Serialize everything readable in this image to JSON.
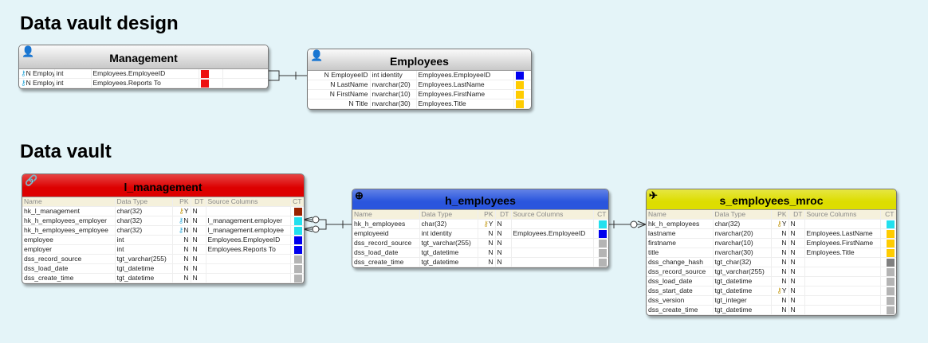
{
  "sections": {
    "design": "Data vault design",
    "vault": "Data vault"
  },
  "colors": {
    "red": "#ee1111",
    "blue": "#0000ee",
    "yellow": "#ffcc00",
    "cyan": "#22e0ee",
    "darkred": "#992200",
    "gray": "#b4b4b4",
    "darkgray": "#808080"
  },
  "columns": [
    "Name",
    "Data Type",
    "PK",
    "DT",
    "Source Columns",
    "CT"
  ],
  "entities": {
    "management": {
      "title": "Management",
      "icon": "user-icon",
      "rows": [
        {
          "key": "link-key",
          "n": "N",
          "name": "Employee",
          "type": "int",
          "src": "Employees.EmployeeID",
          "ct": "red"
        },
        {
          "key": "link-key",
          "n": "N",
          "name": "Employer",
          "type": "int",
          "src": "Employees.Reports To",
          "ct": "red"
        }
      ]
    },
    "employees": {
      "title": "Employees",
      "icon": "user-icon",
      "rows": [
        {
          "n": "N",
          "name": "EmployeeID",
          "type": "int identity",
          "src": "Employees.EmployeeID",
          "ct": "blue"
        },
        {
          "n": "N",
          "name": "LastName",
          "type": "nvarchar(20)",
          "src": "Employees.LastName",
          "ct": "yellow"
        },
        {
          "n": "N",
          "name": "FirstName",
          "type": "nvarchar(10)",
          "src": "Employees.FirstName",
          "ct": "yellow"
        },
        {
          "n": "N",
          "name": "Title",
          "type": "nvarchar(30)",
          "src": "Employees.Title",
          "ct": "yellow"
        }
      ]
    },
    "l_management": {
      "title": "l_management",
      "icon": "link-chain-icon",
      "header_color": "#dd0000",
      "rows": [
        {
          "name": "hk_l_management",
          "type": "char(32)",
          "key": "primary-key",
          "pk": "Y",
          "dt": "N",
          "src": "",
          "ct": "darkred"
        },
        {
          "name": "hk_h_employees_employer",
          "type": "char(32)",
          "key": "link-key",
          "pk": "N",
          "dt": "N",
          "src": "l_management.employer",
          "ct": "cyan"
        },
        {
          "name": "hk_h_employees_employee",
          "type": "char(32)",
          "key": "link-key",
          "pk": "N",
          "dt": "N",
          "src": "l_management.employee",
          "ct": "cyan"
        },
        {
          "name": "employee",
          "type": "int",
          "pk": "N",
          "dt": "N",
          "src": "Employees.EmployeeID",
          "ct": "blue"
        },
        {
          "name": "employer",
          "type": "int",
          "pk": "N",
          "dt": "N",
          "src": "Employees.Reports To",
          "ct": "blue"
        },
        {
          "name": "dss_record_source",
          "type": "tgt_varchar(255)",
          "pk": "N",
          "dt": "N",
          "src": "",
          "ct": "gray"
        },
        {
          "name": "dss_load_date",
          "type": "tgt_datetime",
          "pk": "N",
          "dt": "N",
          "src": "",
          "ct": "gray"
        },
        {
          "name": "dss_create_time",
          "type": "tgt_datetime",
          "pk": "N",
          "dt": "N",
          "src": "",
          "ct": "gray"
        }
      ]
    },
    "h_employees": {
      "title": "h_employees",
      "icon": "hub-icon",
      "header_color": "#2a55dd",
      "rows": [
        {
          "name": "hk_h_employees",
          "type": "char(32)",
          "key": "primary-key",
          "pk": "Y",
          "dt": "N",
          "src": "",
          "ct": "cyan"
        },
        {
          "name": "employeeid",
          "type": "int identity",
          "pk": "N",
          "dt": "N",
          "src": "Employees.EmployeeID",
          "ct": "blue"
        },
        {
          "name": "dss_record_source",
          "type": "tgt_varchar(255)",
          "pk": "N",
          "dt": "N",
          "src": "",
          "ct": "gray"
        },
        {
          "name": "dss_load_date",
          "type": "tgt_datetime",
          "pk": "N",
          "dt": "N",
          "src": "",
          "ct": "gray"
        },
        {
          "name": "dss_create_time",
          "type": "tgt_datetime",
          "pk": "N",
          "dt": "N",
          "src": "",
          "ct": "gray"
        }
      ]
    },
    "s_employees_mroc": {
      "title": "s_employees_mroc",
      "icon": "satellite-icon",
      "header_color": "#dddd00",
      "rows": [
        {
          "name": "hk_h_employees",
          "type": "char(32)",
          "key": "primary-key",
          "pk": "Y",
          "dt": "N",
          "src": "",
          "ct": "cyan"
        },
        {
          "name": "lastname",
          "type": "nvarchar(20)",
          "pk": "N",
          "dt": "N",
          "src": "Employees.LastName",
          "ct": "yellow"
        },
        {
          "name": "firstname",
          "type": "nvarchar(10)",
          "pk": "N",
          "dt": "N",
          "src": "Employees.FirstName",
          "ct": "yellow"
        },
        {
          "name": "title",
          "type": "nvarchar(30)",
          "pk": "N",
          "dt": "N",
          "src": "Employees.Title",
          "ct": "yellow"
        },
        {
          "name": "dss_change_hash",
          "type": "tgt_char(32)",
          "pk": "N",
          "dt": "N",
          "src": "",
          "ct": "darkgray"
        },
        {
          "name": "dss_record_source",
          "type": "tgt_varchar(255)",
          "pk": "N",
          "dt": "N",
          "src": "",
          "ct": "gray"
        },
        {
          "name": "dss_load_date",
          "type": "tgt_datetime",
          "pk": "N",
          "dt": "N",
          "src": "",
          "ct": "gray"
        },
        {
          "name": "dss_start_date",
          "type": "tgt_datetime",
          "key": "primary-key",
          "pk": "Y",
          "dt": "N",
          "src": "",
          "ct": "gray"
        },
        {
          "name": "dss_version",
          "type": "tgt_integer",
          "pk": "N",
          "dt": "N",
          "src": "",
          "ct": "gray"
        },
        {
          "name": "dss_create_time",
          "type": "tgt_datetime",
          "pk": "N",
          "dt": "N",
          "src": "",
          "ct": "gray"
        }
      ]
    }
  }
}
